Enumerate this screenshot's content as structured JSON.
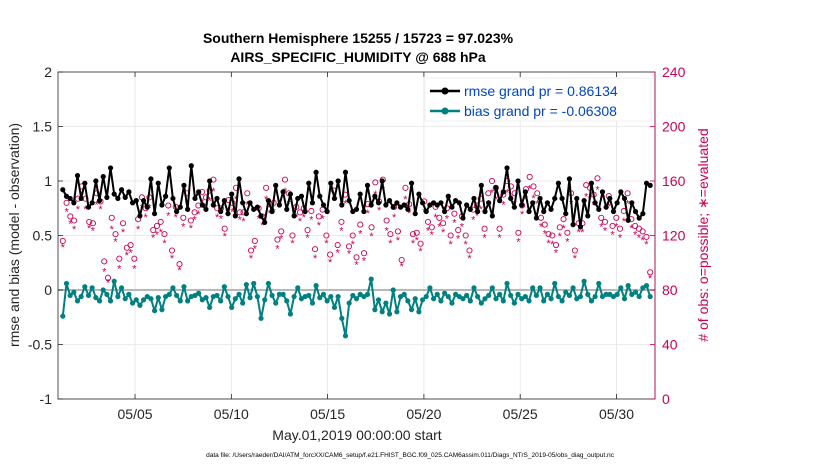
{
  "chart_data": {
    "type": "line",
    "title_line1": "Southern Hemisphere 15255 / 15723 = 97.023%",
    "title_line2": "AIRS_SPECIFIC_HUMIDITY @ 688 hPa",
    "xlabel": "May.01,2019 00:00:00 start",
    "ylabel_left": "rmse and bias (model - observation)",
    "ylabel_right": "# of obs: o=possible; ∗=evaluated",
    "footer": "data file: /Users/raeder/DAI/ATM_forcXX/CAM6_setup/f.e21.FHIST_BGC.f09_025.CAM6assim.011/Diags_NTrS_2019-05/obs_diag_output.nc",
    "xlim": [
      1,
      32
    ],
    "ylim_left": [
      -1,
      2
    ],
    "ylim_right": [
      0,
      240
    ],
    "x_ticks": [
      5,
      10,
      15,
      20,
      25,
      30
    ],
    "x_tick_labels": [
      "05/05",
      "05/10",
      "05/15",
      "05/20",
      "05/25",
      "05/30"
    ],
    "y_left_ticks": [
      -1,
      -0.5,
      0,
      0.5,
      1,
      1.5,
      2
    ],
    "y_left_tick_labels": [
      "-1",
      "-0.5",
      "0",
      "0.5",
      "1",
      "1.5",
      "2"
    ],
    "y_right_ticks": [
      0,
      40,
      80,
      120,
      160,
      200,
      240
    ],
    "y_right_tick_labels": [
      "0",
      "40",
      "80",
      "120",
      "160",
      "200",
      "240"
    ],
    "legend": [
      {
        "label": "rmse grand pr = 0.86134",
        "color": "#000000"
      },
      {
        "label": "bias grand pr = -0.06308",
        "color": "#008080"
      }
    ],
    "series": [
      {
        "name": "rmse",
        "axis": "left",
        "color": "#000000",
        "values": [
          0.92,
          0.86,
          0.84,
          0.8,
          1.05,
          0.84,
          0.98,
          0.76,
          0.8,
          1.0,
          0.82,
          1.04,
          0.85,
          1.12,
          0.88,
          0.84,
          0.92,
          0.85,
          0.9,
          0.8,
          0.82,
          0.68,
          0.82,
          0.76,
          1.02,
          0.7,
          0.98,
          0.78,
          0.86,
          1.12,
          0.84,
          0.72,
          0.76,
          0.96,
          0.74,
          1.14,
          0.84,
          0.9,
          0.78,
          0.74,
          1.0,
          0.78,
          0.84,
          0.72,
          0.82,
          0.7,
          0.88,
          0.68,
          1.02,
          0.8,
          0.7,
          0.8,
          0.74,
          0.76,
          0.68,
          0.62,
          0.82,
          0.72,
          0.96,
          0.78,
          0.9,
          0.74,
          0.88,
          0.68,
          0.84,
          0.86,
          0.72,
          0.98,
          0.8,
          1.08,
          0.86,
          0.78,
          0.72,
          0.98,
          0.84,
          1.0,
          0.78,
          1.08,
          0.82,
          0.72,
          0.74,
          0.88,
          0.72,
          0.96,
          0.78,
          0.86,
          0.8,
          1.0,
          0.78,
          0.82,
          0.76,
          0.8,
          0.76,
          0.78,
          0.74,
          0.98,
          0.7,
          0.88,
          0.8,
          0.72,
          0.78,
          0.8,
          0.78,
          0.8,
          0.72,
          0.86,
          0.76,
          0.82,
          0.8,
          0.66,
          0.78,
          0.74,
          0.84,
          0.72,
          0.96,
          0.72,
          0.8,
          0.68,
          0.94,
          0.82,
          0.9,
          1.12,
          0.84,
          0.76,
          1.0,
          0.78,
          0.9,
          0.72,
          0.8,
          0.66,
          0.84,
          0.72,
          0.8,
          0.74,
          0.84,
          0.98,
          0.84,
          0.7,
          1.02,
          0.6,
          0.84,
          0.58,
          0.82,
          0.68,
          0.98,
          0.8,
          0.74,
          0.9,
          0.76,
          0.84,
          0.72,
          0.8,
          0.9,
          0.84,
          0.64,
          0.8,
          0.72,
          0.66,
          0.7,
          0.98,
          0.96
        ]
      },
      {
        "name": "bias",
        "axis": "left",
        "color": "#008080",
        "values": [
          -0.24,
          0.06,
          -0.05,
          -0.02,
          -0.1,
          -0.06,
          0.03,
          -0.05,
          0.02,
          -0.07,
          -0.1,
          0.0,
          -0.04,
          -0.1,
          0.08,
          -0.06,
          0.02,
          -0.08,
          -0.04,
          -0.12,
          -0.09,
          -0.14,
          -0.09,
          -0.06,
          -0.08,
          -0.19,
          -0.07,
          -0.18,
          -0.06,
          -0.04,
          0.02,
          -0.05,
          -0.1,
          0.03,
          -0.1,
          -0.06,
          -0.05,
          -0.03,
          -0.09,
          -0.07,
          -0.16,
          -0.06,
          -0.05,
          -0.1,
          0.03,
          -0.06,
          -0.16,
          -0.08,
          -0.04,
          -0.12,
          0.05,
          -0.07,
          0.06,
          -0.06,
          -0.26,
          -0.09,
          0.06,
          -0.05,
          -0.12,
          -0.04,
          -0.04,
          -0.1,
          -0.22,
          -0.06,
          0.02,
          -0.08,
          -0.06,
          -0.05,
          -0.12,
          0.04,
          -0.07,
          -0.04,
          -0.1,
          -0.06,
          -0.16,
          -0.06,
          -0.26,
          -0.42,
          -0.12,
          -0.05,
          -0.08,
          -0.04,
          -0.06,
          -0.04,
          0.1,
          -0.18,
          -0.09,
          -0.2,
          -0.12,
          -0.22,
          0.0,
          -0.2,
          -0.06,
          -0.04,
          -0.1,
          -0.18,
          -0.08,
          -0.2,
          -0.09,
          -0.06,
          0.02,
          -0.08,
          -0.04,
          -0.1,
          -0.03,
          -0.06,
          -0.12,
          -0.04,
          -0.06,
          -0.08,
          -0.05,
          -0.1,
          0.02,
          -0.06,
          -0.12,
          -0.08,
          -0.05,
          0.02,
          -0.08,
          -0.04,
          -0.1,
          0.06,
          -0.05,
          -0.12,
          -0.04,
          -0.08,
          -0.06,
          -0.1,
          0.02,
          -0.05,
          0.02,
          -0.1,
          -0.04,
          -0.08,
          0.06,
          -0.06,
          -0.1,
          -0.02,
          -0.05,
          0.02,
          -0.08,
          -0.06,
          0.08,
          -0.04,
          -0.1,
          -0.06,
          0.06,
          -0.06,
          -0.04,
          -0.04,
          -0.06,
          -0.04,
          0.02,
          -0.08,
          0.04,
          -0.04,
          -0.02,
          -0.06,
          0.02,
          0.04,
          -0.06
        ]
      },
      {
        "name": "obs possible",
        "axis": "right",
        "marker": "o",
        "color": "#cc0055",
        "values": [
          116,
          144,
          134,
          131,
          147,
          156,
          147,
          130,
          129,
          151,
          145,
          101,
          89,
          133,
          121,
          103,
          129,
          111,
          113,
          103,
          132,
          148,
          140,
          148,
          124,
          127,
          130,
          121,
          142,
          109,
          141,
          99,
          133,
          151,
          131,
          137,
          142,
          152,
          148,
          153,
          161,
          140,
          140,
          125,
          146,
          144,
          155,
          137,
          137,
          151,
          109,
          116,
          140,
          134,
          155,
          143,
          144,
          117,
          123,
          161,
          151,
          120,
          141,
          137,
          140,
          124,
          138,
          110,
          134,
          139,
          120,
          106,
          153,
          113,
          130,
          150,
          112,
          120,
          104,
          128,
          107,
          143,
          126,
          159,
          145,
          161,
          131,
          121,
          141,
          123,
          102,
          155,
          143,
          121,
          122,
          114,
          145,
          130,
          126,
          141,
          133,
          129,
          140,
          120,
          136,
          124,
          134,
          120,
          109,
          139,
          142,
          147,
          125,
          151,
          160,
          155,
          125,
          150,
          160,
          156,
          151,
          122,
          142,
          154,
          163,
          156,
          151,
          133,
          128,
          121,
          120,
          113,
          126,
          132,
          122,
          151,
          109,
          129,
          129,
          157,
          155,
          150,
          162,
          133,
          130,
          149,
          127,
          133,
          125,
          138,
          151,
          132,
          127,
          125,
          123,
          119,
          93
        ]
      },
      {
        "name": "obs evaluated",
        "axis": "right",
        "marker": "*",
        "color": "#cc0055",
        "values": [
          112,
          138,
          129,
          125,
          140,
          150,
          140,
          126,
          124,
          143,
          140,
          94,
          86,
          125,
          116,
          96,
          123,
          106,
          108,
          96,
          125,
          141,
          134,
          141,
          119,
          121,
          123,
          115,
          135,
          104,
          134,
          95,
          127,
          144,
          126,
          132,
          136,
          145,
          142,
          146,
          153,
          134,
          133,
          120,
          139,
          138,
          147,
          132,
          131,
          143,
          104,
          111,
          133,
          128,
          147,
          137,
          138,
          111,
          118,
          153,
          144,
          115,
          134,
          131,
          134,
          119,
          132,
          104,
          128,
          133,
          115,
          101,
          146,
          108,
          124,
          144,
          107,
          114,
          99,
          122,
          102,
          137,
          120,
          151,
          139,
          154,
          124,
          115,
          134,
          117,
          98,
          147,
          137,
          115,
          117,
          109,
          138,
          124,
          121,
          134,
          127,
          123,
          133,
          114,
          130,
          118,
          127,
          114,
          104,
          132,
          135,
          140,
          119,
          144,
          152,
          147,
          119,
          143,
          152,
          148,
          144,
          116,
          136,
          147,
          155,
          148,
          144,
          127,
          122,
          115,
          114,
          108,
          120,
          126,
          116,
          144,
          104,
          123,
          123,
          149,
          147,
          143,
          154,
          127,
          124,
          142,
          121,
          127,
          119,
          131,
          144,
          126,
          121,
          119,
          117,
          114,
          89
        ]
      }
    ]
  }
}
